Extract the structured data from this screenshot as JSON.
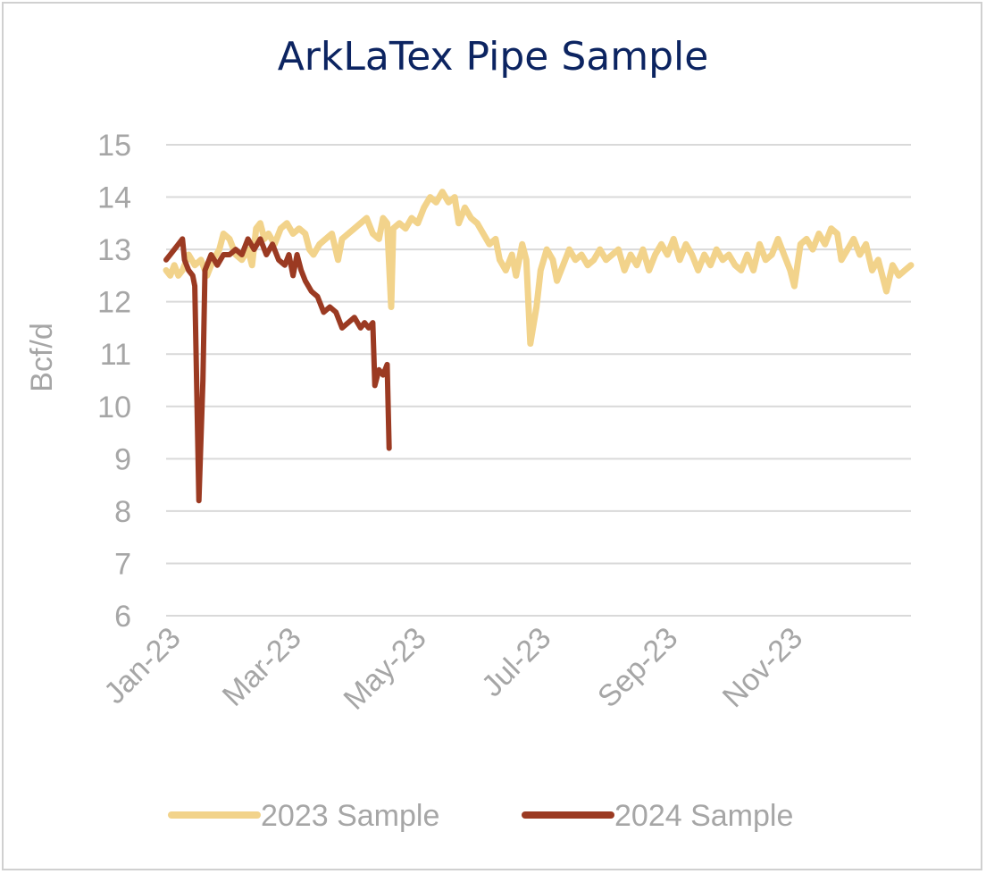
{
  "chart_data": {
    "type": "line",
    "title": "ArkLaTex Pipe Sample",
    "ylabel": "Bcf/d",
    "xlabel": "",
    "ylim": [
      6,
      15
    ],
    "yticks": [
      6,
      7,
      8,
      9,
      10,
      11,
      12,
      13,
      14,
      15
    ],
    "xlim": [
      "2023-01-01",
      "2023-12-31"
    ],
    "xticks": [
      {
        "date": "2023-01-01",
        "label": "Jan-23"
      },
      {
        "date": "2023-03-01",
        "label": "Mar-23"
      },
      {
        "date": "2023-05-01",
        "label": "May-23"
      },
      {
        "date": "2023-07-01",
        "label": "Jul-23"
      },
      {
        "date": "2023-09-01",
        "label": "Sep-23"
      },
      {
        "date": "2023-11-01",
        "label": "Nov-23"
      }
    ],
    "grid": "horizontal",
    "legend_position": "bottom",
    "series": [
      {
        "name": "2023 Sample",
        "color": "#f2d38b",
        "points": [
          [
            "2023-01-01",
            12.6
          ],
          [
            "2023-01-03",
            12.5
          ],
          [
            "2023-01-05",
            12.7
          ],
          [
            "2023-01-07",
            12.5
          ],
          [
            "2023-01-09",
            12.6
          ],
          [
            "2023-01-12",
            12.9
          ],
          [
            "2023-01-15",
            12.7
          ],
          [
            "2023-01-18",
            12.8
          ],
          [
            "2023-01-21",
            12.5
          ],
          [
            "2023-01-24",
            12.8
          ],
          [
            "2023-01-27",
            13.0
          ],
          [
            "2023-01-29",
            13.3
          ],
          [
            "2023-02-01",
            13.2
          ],
          [
            "2023-02-04",
            12.9
          ],
          [
            "2023-02-07",
            12.8
          ],
          [
            "2023-02-10",
            13.0
          ],
          [
            "2023-02-12",
            12.7
          ],
          [
            "2023-02-14",
            13.4
          ],
          [
            "2023-02-16",
            13.5
          ],
          [
            "2023-02-18",
            13.2
          ],
          [
            "2023-02-20",
            13.3
          ],
          [
            "2023-02-23",
            13.1
          ],
          [
            "2023-02-26",
            13.4
          ],
          [
            "2023-03-01",
            13.5
          ],
          [
            "2023-03-04",
            13.3
          ],
          [
            "2023-03-07",
            13.4
          ],
          [
            "2023-03-10",
            13.3
          ],
          [
            "2023-03-12",
            13.0
          ],
          [
            "2023-03-14",
            12.9
          ],
          [
            "2023-03-17",
            13.1
          ],
          [
            "2023-03-20",
            13.2
          ],
          [
            "2023-03-23",
            13.3
          ],
          [
            "2023-03-26",
            12.8
          ],
          [
            "2023-03-28",
            13.2
          ],
          [
            "2023-03-31",
            13.3
          ],
          [
            "2023-04-03",
            13.4
          ],
          [
            "2023-04-06",
            13.5
          ],
          [
            "2023-04-09",
            13.6
          ],
          [
            "2023-04-12",
            13.3
          ],
          [
            "2023-04-15",
            13.2
          ],
          [
            "2023-04-17",
            13.6
          ],
          [
            "2023-04-19",
            13.5
          ],
          [
            "2023-04-21",
            11.9
          ],
          [
            "2023-04-22",
            13.4
          ],
          [
            "2023-04-25",
            13.5
          ],
          [
            "2023-04-28",
            13.4
          ],
          [
            "2023-05-01",
            13.6
          ],
          [
            "2023-05-04",
            13.5
          ],
          [
            "2023-05-07",
            13.8
          ],
          [
            "2023-05-10",
            14.0
          ],
          [
            "2023-05-13",
            13.9
          ],
          [
            "2023-05-16",
            14.1
          ],
          [
            "2023-05-19",
            13.9
          ],
          [
            "2023-05-22",
            14.0
          ],
          [
            "2023-05-24",
            13.5
          ],
          [
            "2023-05-27",
            13.8
          ],
          [
            "2023-05-30",
            13.6
          ],
          [
            "2023-06-02",
            13.5
          ],
          [
            "2023-06-05",
            13.3
          ],
          [
            "2023-06-08",
            13.1
          ],
          [
            "2023-06-11",
            13.2
          ],
          [
            "2023-06-13",
            12.8
          ],
          [
            "2023-06-16",
            12.6
          ],
          [
            "2023-06-19",
            12.9
          ],
          [
            "2023-06-21",
            12.5
          ],
          [
            "2023-06-24",
            13.1
          ],
          [
            "2023-06-26",
            12.8
          ],
          [
            "2023-06-28",
            11.2
          ],
          [
            "2023-07-01",
            11.9
          ],
          [
            "2023-07-03",
            12.6
          ],
          [
            "2023-07-06",
            13.0
          ],
          [
            "2023-07-09",
            12.8
          ],
          [
            "2023-07-11",
            12.4
          ],
          [
            "2023-07-14",
            12.7
          ],
          [
            "2023-07-17",
            13.0
          ],
          [
            "2023-07-20",
            12.8
          ],
          [
            "2023-07-23",
            12.9
          ],
          [
            "2023-07-26",
            12.7
          ],
          [
            "2023-07-29",
            12.8
          ],
          [
            "2023-08-01",
            13.0
          ],
          [
            "2023-08-04",
            12.8
          ],
          [
            "2023-08-07",
            12.9
          ],
          [
            "2023-08-10",
            13.0
          ],
          [
            "2023-08-13",
            12.6
          ],
          [
            "2023-08-16",
            12.9
          ],
          [
            "2023-08-19",
            12.7
          ],
          [
            "2023-08-22",
            13.0
          ],
          [
            "2023-08-25",
            12.6
          ],
          [
            "2023-08-28",
            12.9
          ],
          [
            "2023-08-31",
            13.1
          ],
          [
            "2023-09-03",
            12.9
          ],
          [
            "2023-09-06",
            13.2
          ],
          [
            "2023-09-09",
            12.8
          ],
          [
            "2023-09-12",
            13.1
          ],
          [
            "2023-09-15",
            12.9
          ],
          [
            "2023-09-18",
            12.6
          ],
          [
            "2023-09-21",
            12.9
          ],
          [
            "2023-09-24",
            12.7
          ],
          [
            "2023-09-27",
            13.0
          ],
          [
            "2023-09-30",
            12.8
          ],
          [
            "2023-10-03",
            12.9
          ],
          [
            "2023-10-06",
            12.7
          ],
          [
            "2023-10-09",
            12.6
          ],
          [
            "2023-10-12",
            12.9
          ],
          [
            "2023-10-15",
            12.6
          ],
          [
            "2023-10-18",
            13.1
          ],
          [
            "2023-10-21",
            12.8
          ],
          [
            "2023-10-24",
            12.9
          ],
          [
            "2023-10-27",
            13.2
          ],
          [
            "2023-10-30",
            12.9
          ],
          [
            "2023-11-02",
            12.6
          ],
          [
            "2023-11-04",
            12.3
          ],
          [
            "2023-11-07",
            13.1
          ],
          [
            "2023-11-10",
            13.2
          ],
          [
            "2023-11-13",
            13.0
          ],
          [
            "2023-11-16",
            13.3
          ],
          [
            "2023-11-19",
            13.1
          ],
          [
            "2023-11-22",
            13.4
          ],
          [
            "2023-11-25",
            13.3
          ],
          [
            "2023-11-27",
            12.8
          ],
          [
            "2023-11-30",
            13.0
          ],
          [
            "2023-12-03",
            13.2
          ],
          [
            "2023-12-06",
            12.9
          ],
          [
            "2023-12-09",
            13.1
          ],
          [
            "2023-12-12",
            12.6
          ],
          [
            "2023-12-15",
            12.8
          ],
          [
            "2023-12-17",
            12.5
          ],
          [
            "2023-12-19",
            12.2
          ],
          [
            "2023-12-22",
            12.7
          ],
          [
            "2023-12-25",
            12.5
          ],
          [
            "2023-12-28",
            12.6
          ],
          [
            "2023-12-31",
            12.7
          ]
        ]
      },
      {
        "name": "2024 Sample",
        "color": "#9b3a22",
        "points": [
          [
            "2023-01-01",
            12.8
          ],
          [
            "2023-01-03",
            12.9
          ],
          [
            "2023-01-05",
            13.0
          ],
          [
            "2023-01-07",
            13.1
          ],
          [
            "2023-01-09",
            13.2
          ],
          [
            "2023-01-10",
            12.8
          ],
          [
            "2023-01-12",
            12.6
          ],
          [
            "2023-01-14",
            12.5
          ],
          [
            "2023-01-15",
            12.3
          ],
          [
            "2023-01-17",
            8.2
          ],
          [
            "2023-01-19",
            10.5
          ],
          [
            "2023-01-20",
            12.6
          ],
          [
            "2023-01-23",
            12.9
          ],
          [
            "2023-01-26",
            12.7
          ],
          [
            "2023-01-29",
            12.9
          ],
          [
            "2023-02-01",
            12.9
          ],
          [
            "2023-02-04",
            13.0
          ],
          [
            "2023-02-07",
            12.9
          ],
          [
            "2023-02-10",
            13.2
          ],
          [
            "2023-02-13",
            13.0
          ],
          [
            "2023-02-16",
            13.2
          ],
          [
            "2023-02-19",
            12.9
          ],
          [
            "2023-02-22",
            13.1
          ],
          [
            "2023-02-25",
            12.8
          ],
          [
            "2023-02-28",
            12.7
          ],
          [
            "2023-03-02",
            12.9
          ],
          [
            "2023-03-04",
            12.5
          ],
          [
            "2023-03-06",
            12.9
          ],
          [
            "2023-03-08",
            12.6
          ],
          [
            "2023-03-10",
            12.4
          ],
          [
            "2023-03-13",
            12.2
          ],
          [
            "2023-03-16",
            12.1
          ],
          [
            "2023-03-19",
            11.8
          ],
          [
            "2023-03-22",
            11.9
          ],
          [
            "2023-03-25",
            11.8
          ],
          [
            "2023-03-28",
            11.5
          ],
          [
            "2023-03-31",
            11.6
          ],
          [
            "2023-04-03",
            11.7
          ],
          [
            "2023-04-06",
            11.5
          ],
          [
            "2023-04-08",
            11.6
          ],
          [
            "2023-04-10",
            11.5
          ],
          [
            "2023-04-12",
            11.6
          ],
          [
            "2023-04-13",
            10.4
          ],
          [
            "2023-04-15",
            10.7
          ],
          [
            "2023-04-17",
            10.6
          ],
          [
            "2023-04-19",
            10.8
          ],
          [
            "2023-04-20",
            9.2
          ]
        ]
      }
    ]
  }
}
